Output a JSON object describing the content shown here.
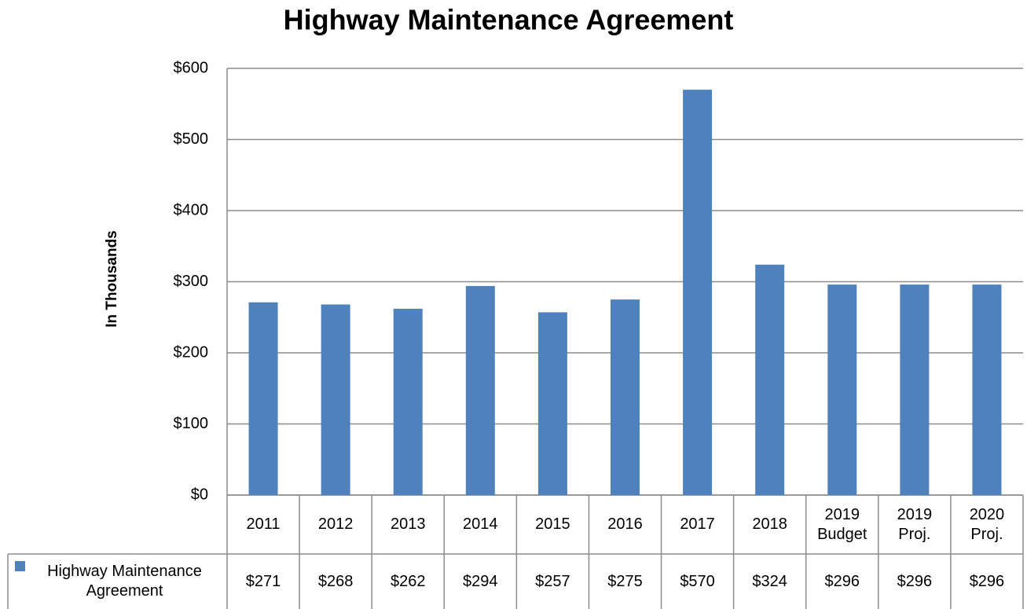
{
  "chart_data": {
    "type": "bar",
    "title": "Highway Maintenance Agreement",
    "y_label": "In Thousands",
    "categories": [
      "2011",
      "2012",
      "2013",
      "2014",
      "2015",
      "2016",
      "2017",
      "2018",
      "2019 Budget",
      "2019 Proj.",
      "2020 Proj."
    ],
    "series": [
      {
        "name": "Highway Maintenance Agreement",
        "color": "#4f81bd",
        "values": [
          271,
          268,
          262,
          294,
          257,
          275,
          570,
          324,
          296,
          296,
          296
        ],
        "value_labels": [
          "$271",
          "$268",
          "$262",
          "$294",
          "$257",
          "$275",
          "$570",
          "$324",
          "$296",
          "$296",
          "$296"
        ]
      }
    ],
    "ylim": [
      0,
      600
    ],
    "yticks": [
      {
        "value": 0,
        "label": "$0"
      },
      {
        "value": 100,
        "label": "$100"
      },
      {
        "value": 200,
        "label": "$200"
      },
      {
        "value": 300,
        "label": "$300"
      },
      {
        "value": 400,
        "label": "$400"
      },
      {
        "value": 500,
        "label": "$500"
      },
      {
        "value": 600,
        "label": "$600"
      }
    ],
    "grid": true,
    "data_table": true
  }
}
